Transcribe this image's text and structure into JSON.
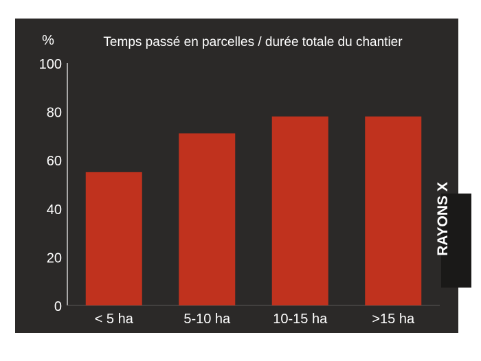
{
  "chart_data": {
    "type": "bar",
    "title": "Temps passé en parcelles / durée totale du chantier",
    "ylabel": "%",
    "xlabel": "",
    "categories": [
      "< 5 ha",
      "5-10 ha",
      "10-15 ha",
      ">15 ha"
    ],
    "values": [
      55,
      71,
      78,
      78
    ],
    "ylim": [
      0,
      100
    ],
    "yticks": [
      "0",
      "20",
      "40",
      "60",
      "80",
      "100"
    ],
    "grid": false,
    "colors": {
      "bar": "#c0321e",
      "background": "#2b2928",
      "text": "#ffffff",
      "axis": "#ffffff"
    }
  },
  "watermark": "RAYONS X"
}
